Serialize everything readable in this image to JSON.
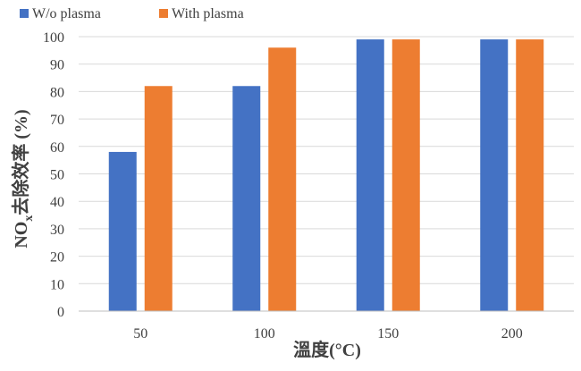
{
  "chart_data": {
    "type": "bar",
    "categories": [
      "50",
      "100",
      "150",
      "200"
    ],
    "series": [
      {
        "name": "W/o plasma",
        "values": [
          58,
          82,
          99,
          99
        ],
        "color": "#4472C4"
      },
      {
        "name": "With plasma",
        "values": [
          82,
          96,
          99,
          99
        ],
        "color": "#ED7D31"
      }
    ],
    "xlabel": "溫度(°C)",
    "ylabel": {
      "pre": "NO",
      "sub": "x",
      "post": "去除效率 (%)"
    },
    "ylim": [
      0,
      100
    ],
    "yticks": [
      0,
      10,
      20,
      30,
      40,
      50,
      60,
      70,
      80,
      90,
      100
    ],
    "grid": true,
    "legend_position": "top-left",
    "colors": {
      "grid": "#D9D9D9",
      "axis": "#BFBFBF",
      "text": "#404040"
    }
  }
}
